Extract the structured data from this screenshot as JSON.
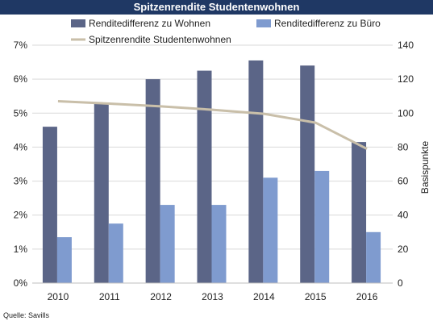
{
  "chart_data": {
    "type": "bar",
    "title": "Spitzenrendite Studentenwohnen",
    "categories": [
      "2010",
      "2011",
      "2012",
      "2013",
      "2014",
      "2015",
      "2016"
    ],
    "series": [
      {
        "name": "Renditedifferenz zu Wohnen",
        "type": "bar",
        "axis": "right",
        "color": "#5b6587",
        "values": [
          92,
          106,
          120,
          125,
          131,
          128,
          83
        ]
      },
      {
        "name": "Renditedifferenz zu Büro",
        "type": "bar",
        "axis": "right",
        "color": "#7f9bcf",
        "values": [
          27,
          35,
          46,
          46,
          62,
          66,
          30
        ]
      },
      {
        "name": "Spitzenrendite Studentenwohnen",
        "type": "line",
        "axis": "left",
        "color": "#c9bfa9",
        "values": [
          5.35,
          5.28,
          5.2,
          5.1,
          4.98,
          4.72,
          3.95
        ]
      }
    ],
    "y_left": {
      "ticks": [
        "0%",
        "1%",
        "2%",
        "3%",
        "4%",
        "5%",
        "6%",
        "7%"
      ],
      "range": [
        0,
        7
      ]
    },
    "y_right": {
      "ticks": [
        "0",
        "20",
        "40",
        "60",
        "80",
        "100",
        "120",
        "140"
      ],
      "range": [
        0,
        140
      ],
      "label": "Basispunkte"
    },
    "grid": true,
    "legend": "top"
  },
  "source_note": "Quelle: Savills"
}
